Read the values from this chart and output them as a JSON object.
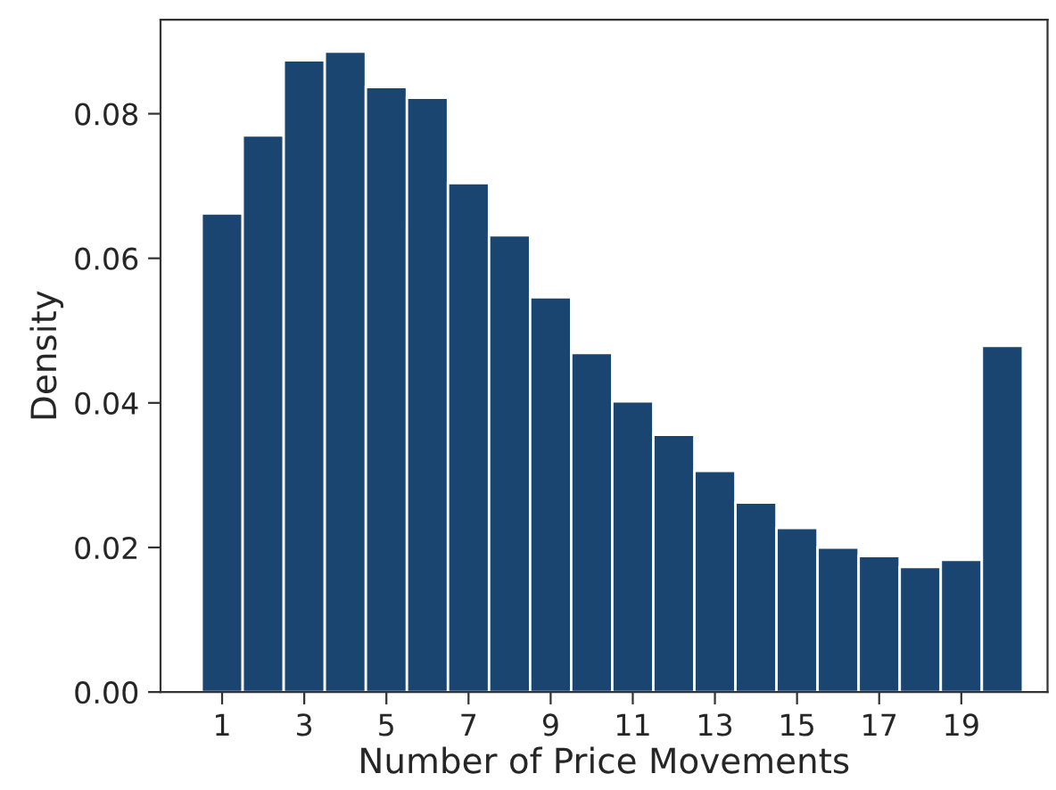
{
  "chart_data": {
    "type": "histogram",
    "xlabel": "Number of Price Movements",
    "ylabel": "Density",
    "bins": [
      0.5,
      1.5,
      2.5,
      3.5,
      4.5,
      5.5,
      6.5,
      7.5,
      8.5,
      9.5,
      10.5,
      11.5,
      12.5,
      13.5,
      14.5,
      15.5,
      16.5,
      17.5,
      18.5,
      19.5,
      20.5
    ],
    "values": [
      0.0662,
      0.077,
      0.0874,
      0.0886,
      0.0837,
      0.0822,
      0.0704,
      0.0632,
      0.0546,
      0.0469,
      0.0402,
      0.0356,
      0.0306,
      0.0262,
      0.0227,
      0.02,
      0.0188,
      0.0173,
      0.0183,
      0.0479
    ],
    "color": "#1b4571",
    "xlim": [
      -0.5,
      21.1
    ],
    "ylim": [
      0,
      0.093
    ],
    "xticks": [
      1,
      3,
      5,
      7,
      9,
      11,
      13,
      15,
      17,
      19
    ],
    "yticks": [
      {
        "value": 0,
        "label": "0.00"
      },
      {
        "value": 0.02,
        "label": "0.02"
      },
      {
        "value": 0.04,
        "label": "0.04"
      },
      {
        "value": 0.06,
        "label": "0.06"
      },
      {
        "value": 0.08,
        "label": "0.08"
      }
    ],
    "grid": false,
    "legend": false
  }
}
